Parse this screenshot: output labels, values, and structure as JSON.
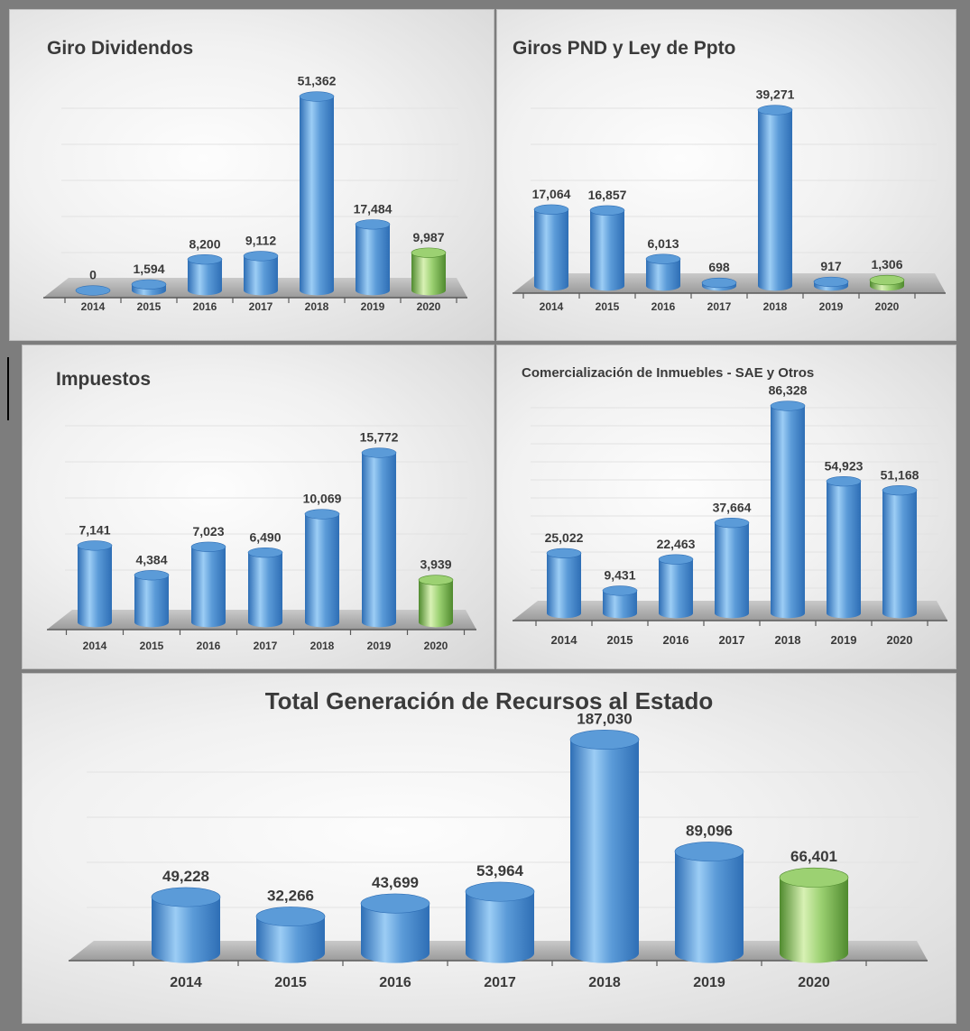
{
  "colors": {
    "bar_blue_light": "#9ccdf5",
    "bar_blue_mid": "#5b9bd8",
    "bar_blue_dark": "#2e6eb5",
    "bar_green_light": "#d8f1b4",
    "bar_green_mid": "#9cd172",
    "bar_green_dark": "#4f8a2e",
    "frame": "#7d7d7d",
    "text": "#3a3a3a"
  },
  "chart_data": [
    {
      "id": "giro-dividendos",
      "type": "bar",
      "title": "Giro Dividendos",
      "categories": [
        "2014",
        "2015",
        "2016",
        "2017",
        "2018",
        "2019",
        "2020"
      ],
      "values": [
        0,
        1594,
        8200,
        9112,
        51362,
        17484,
        9987
      ],
      "value_labels": [
        "0",
        "1,594",
        "8,200",
        "9,112",
        "51,362",
        "17,484",
        "9,987"
      ],
      "highlight_last": true,
      "grid": true,
      "legend": "none"
    },
    {
      "id": "giros-pnd",
      "type": "bar",
      "title": "Giros PND y Ley de Ppto",
      "categories": [
        "2014",
        "2015",
        "2016",
        "2017",
        "2018",
        "2019",
        "2020"
      ],
      "values": [
        17064,
        16857,
        6013,
        698,
        39271,
        917,
        1306
      ],
      "value_labels": [
        "17,064",
        "16,857",
        "6,013",
        "698",
        "39,271",
        "917",
        "1,306"
      ],
      "highlight_last": true,
      "grid": true,
      "legend": "none"
    },
    {
      "id": "impuestos",
      "type": "bar",
      "title": "Impuestos",
      "categories": [
        "2014",
        "2015",
        "2016",
        "2017",
        "2018",
        "2019",
        "2020"
      ],
      "values": [
        7141,
        4384,
        7023,
        6490,
        10069,
        15772,
        3939
      ],
      "value_labels": [
        "7,141",
        "4,384",
        "7,023",
        "6,490",
        "10,069",
        "15,772",
        "3,939"
      ],
      "highlight_last": true,
      "grid": true,
      "legend": "none"
    },
    {
      "id": "comercializacion",
      "type": "bar",
      "title": "Comercialización de Inmuebles - SAE y Otros",
      "categories": [
        "2014",
        "2015",
        "2016",
        "2017",
        "2018",
        "2019",
        "2020"
      ],
      "values": [
        25022,
        9431,
        22463,
        37664,
        86328,
        54923,
        51168
      ],
      "value_labels": [
        "25,022",
        "9,431",
        "22,463",
        "37,664",
        "86,328",
        "54,923",
        "51,168"
      ],
      "highlight_last": false,
      "grid": true,
      "legend": "none"
    },
    {
      "id": "total",
      "type": "bar",
      "title": "Total Generación de Recursos al Estado",
      "categories": [
        "2014",
        "2015",
        "2016",
        "2017",
        "2018",
        "2019",
        "2020"
      ],
      "values": [
        49228,
        32266,
        43699,
        53964,
        187030,
        89096,
        66401
      ],
      "value_labels": [
        "49,228",
        "32,266",
        "43,699",
        "53,964",
        "187,030",
        "89,096",
        "66,401"
      ],
      "highlight_last": true,
      "grid": true,
      "legend": "none"
    }
  ]
}
